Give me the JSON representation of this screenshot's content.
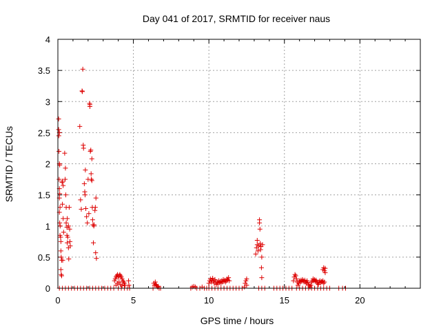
{
  "chart_data": {
    "type": "scatter",
    "title": "Day 041 of 2017, SRMTID for receiver naus",
    "xlabel": "GPS time / hours",
    "ylabel": "SRMTID / TECUs",
    "xlim": [
      0,
      24
    ],
    "ylim": [
      0,
      4
    ],
    "x_ticks": [
      0,
      5,
      10,
      15,
      20
    ],
    "y_ticks": [
      0,
      0.5,
      1,
      1.5,
      2,
      2.5,
      3,
      3.5,
      4
    ],
    "x_tick_labels": [
      "0",
      "5",
      "10",
      "15",
      "20"
    ],
    "y_tick_labels": [
      "0",
      "0.5",
      "1",
      "1.5",
      "2",
      "2.5",
      "3",
      "3.5",
      "4"
    ],
    "grid": true,
    "marker": "plus",
    "color": "#dd0000",
    "points": [
      [
        0.05,
        2.72
      ],
      [
        0.05,
        2.55
      ],
      [
        0.06,
        2.45
      ],
      [
        0.1,
        2.5
      ],
      [
        0.07,
        2.2
      ],
      [
        0.1,
        2.0
      ],
      [
        0.12,
        1.98
      ],
      [
        0.08,
        1.75
      ],
      [
        0.1,
        1.6
      ],
      [
        0.12,
        1.52
      ],
      [
        0.1,
        1.45
      ],
      [
        0.14,
        1.3
      ],
      [
        0.1,
        1.22
      ],
      [
        0.12,
        1.05
      ],
      [
        0.15,
        1.0
      ],
      [
        0.14,
        0.85
      ],
      [
        0.18,
        0.82
      ],
      [
        0.2,
        0.75
      ],
      [
        0.2,
        0.6
      ],
      [
        0.22,
        0.5
      ],
      [
        0.25,
        0.45
      ],
      [
        0.2,
        0.3
      ],
      [
        0.22,
        0.22
      ],
      [
        0.25,
        0.2
      ],
      [
        0.28,
        1.7
      ],
      [
        0.3,
        1.72
      ],
      [
        0.35,
        1.65
      ],
      [
        0.3,
        1.35
      ],
      [
        0.35,
        1.12
      ],
      [
        0.38,
        0.9
      ],
      [
        0.32,
        0.45
      ],
      [
        0.45,
        2.17
      ],
      [
        0.48,
        1.75
      ],
      [
        0.5,
        1.93
      ],
      [
        0.52,
        1.5
      ],
      [
        0.55,
        1.3
      ],
      [
        0.55,
        1.05
      ],
      [
        0.6,
        0.98
      ],
      [
        0.6,
        0.85
      ],
      [
        0.62,
        1.12
      ],
      [
        0.65,
        0.82
      ],
      [
        0.62,
        0.73
      ],
      [
        0.7,
        0.65
      ],
      [
        0.72,
        0.47
      ],
      [
        0.7,
        1.0
      ],
      [
        0.75,
        1.3
      ],
      [
        0.78,
        0.95
      ],
      [
        0.8,
        0.75
      ],
      [
        0.82,
        0.68
      ],
      [
        1.45,
        2.6
      ],
      [
        1.5,
        1.42
      ],
      [
        1.55,
        1.27
      ],
      [
        1.6,
        3.17
      ],
      [
        1.62,
        3.16
      ],
      [
        1.65,
        3.52
      ],
      [
        1.68,
        2.3
      ],
      [
        1.7,
        2.25
      ],
      [
        1.75,
        1.68
      ],
      [
        1.78,
        1.55
      ],
      [
        1.8,
        1.5
      ],
      [
        1.82,
        1.9
      ],
      [
        1.85,
        1.28
      ],
      [
        1.9,
        1.15
      ],
      [
        1.95,
        1.05
      ],
      [
        2.0,
        1.75
      ],
      [
        2.05,
        1.2
      ],
      [
        2.1,
        2.97
      ],
      [
        2.12,
        2.95
      ],
      [
        2.12,
        2.92
      ],
      [
        2.15,
        2.2
      ],
      [
        2.18,
        2.22
      ],
      [
        2.2,
        1.84
      ],
      [
        2.22,
        1.75
      ],
      [
        2.25,
        2.08
      ],
      [
        2.25,
        1.73
      ],
      [
        2.28,
        1.3
      ],
      [
        2.3,
        1.1
      ],
      [
        2.32,
        1.02
      ],
      [
        2.35,
        0.73
      ],
      [
        2.38,
        1.0
      ],
      [
        2.4,
        1.02
      ],
      [
        2.45,
        1.25
      ],
      [
        2.48,
        1.3
      ],
      [
        2.5,
        0.57
      ],
      [
        2.52,
        1.45
      ],
      [
        2.55,
        0.48
      ],
      [
        0.1,
        0.0
      ],
      [
        0.3,
        0.0
      ],
      [
        0.5,
        0.0
      ],
      [
        0.7,
        0.0
      ],
      [
        0.9,
        0.0
      ],
      [
        1.1,
        0.0
      ],
      [
        1.3,
        0.0
      ],
      [
        1.5,
        0.0
      ],
      [
        1.7,
        0.0
      ],
      [
        1.9,
        0.0
      ],
      [
        2.1,
        0.0
      ],
      [
        2.3,
        0.0
      ],
      [
        2.5,
        0.0
      ],
      [
        2.7,
        0.0
      ],
      [
        2.9,
        0.0
      ],
      [
        3.1,
        0.0
      ],
      [
        3.3,
        0.0
      ],
      [
        3.5,
        0.0
      ],
      [
        3.7,
        0.0
      ],
      [
        3.75,
        0.12
      ],
      [
        3.8,
        0.15
      ],
      [
        3.85,
        0.18
      ],
      [
        3.9,
        0.2
      ],
      [
        3.95,
        0.22
      ],
      [
        4.0,
        0.18
      ],
      [
        4.05,
        0.2
      ],
      [
        4.1,
        0.22
      ],
      [
        4.15,
        0.2
      ],
      [
        4.2,
        0.18
      ],
      [
        4.25,
        0.15
      ],
      [
        4.3,
        0.12
      ],
      [
        4.35,
        0.1
      ],
      [
        4.4,
        0.08
      ],
      [
        3.85,
        0.05
      ],
      [
        3.95,
        0.08
      ],
      [
        4.05,
        0.1
      ],
      [
        4.15,
        0.06
      ],
      [
        4.25,
        0.04
      ],
      [
        4.45,
        0.05
      ],
      [
        4.0,
        0.0
      ],
      [
        4.2,
        0.0
      ],
      [
        4.4,
        0.0
      ],
      [
        4.6,
        0.0
      ],
      [
        4.7,
        0.05
      ],
      [
        4.68,
        0.12
      ],
      [
        4.75,
        0.0
      ],
      [
        6.3,
        0.0
      ],
      [
        6.35,
        0.08
      ],
      [
        6.4,
        0.05
      ],
      [
        6.45,
        0.1
      ],
      [
        6.5,
        0.06
      ],
      [
        6.55,
        0.04
      ],
      [
        6.6,
        0.02
      ],
      [
        6.65,
        0.03
      ],
      [
        6.7,
        0.0
      ],
      [
        6.8,
        0.0
      ],
      [
        8.8,
        0.0
      ],
      [
        8.9,
        0.02
      ],
      [
        9.0,
        0.03
      ],
      [
        9.1,
        0.02
      ],
      [
        9.2,
        0.0
      ],
      [
        9.4,
        0.0
      ],
      [
        9.55,
        0.02
      ],
      [
        9.7,
        0.0
      ],
      [
        9.85,
        0.0
      ],
      [
        10.0,
        0.08
      ],
      [
        10.05,
        0.12
      ],
      [
        10.1,
        0.15
      ],
      [
        10.15,
        0.1
      ],
      [
        10.2,
        0.13
      ],
      [
        10.25,
        0.16
      ],
      [
        10.3,
        0.12
      ],
      [
        10.35,
        0.08
      ],
      [
        10.4,
        0.14
      ],
      [
        10.45,
        0.1
      ],
      [
        10.5,
        0.06
      ],
      [
        10.55,
        0.1
      ],
      [
        10.6,
        0.08
      ],
      [
        10.65,
        0.12
      ],
      [
        10.7,
        0.09
      ],
      [
        10.75,
        0.11
      ],
      [
        10.8,
        0.08
      ],
      [
        10.85,
        0.12
      ],
      [
        10.9,
        0.1
      ],
      [
        10.95,
        0.14
      ],
      [
        11.0,
        0.11
      ],
      [
        11.05,
        0.13
      ],
      [
        11.1,
        0.1
      ],
      [
        11.15,
        0.12
      ],
      [
        11.2,
        0.15
      ],
      [
        11.25,
        0.13
      ],
      [
        11.3,
        0.17
      ],
      [
        11.35,
        0.12
      ],
      [
        10.0,
        0.0
      ],
      [
        10.2,
        0.0
      ],
      [
        10.4,
        0.0
      ],
      [
        10.6,
        0.0
      ],
      [
        10.8,
        0.0
      ],
      [
        11.0,
        0.0
      ],
      [
        11.2,
        0.0
      ],
      [
        11.4,
        0.0
      ],
      [
        11.6,
        0.0
      ],
      [
        11.8,
        0.0
      ],
      [
        12.0,
        0.0
      ],
      [
        12.2,
        0.0
      ],
      [
        12.35,
        0.02
      ],
      [
        12.4,
        0.08
      ],
      [
        12.45,
        0.12
      ],
      [
        12.5,
        0.15
      ],
      [
        12.5,
        0.05
      ],
      [
        13.1,
        0.55
      ],
      [
        13.15,
        0.65
      ],
      [
        13.2,
        0.7
      ],
      [
        13.2,
        0.77
      ],
      [
        13.25,
        0.6
      ],
      [
        13.3,
        0.68
      ],
      [
        13.35,
        1.1
      ],
      [
        13.35,
        1.05
      ],
      [
        13.38,
        0.95
      ],
      [
        13.4,
        0.72
      ],
      [
        13.42,
        0.62
      ],
      [
        13.45,
        0.67
      ],
      [
        13.48,
        0.33
      ],
      [
        13.5,
        0.5
      ],
      [
        13.5,
        0.17
      ],
      [
        13.55,
        0.7
      ],
      [
        13.3,
        0.0
      ],
      [
        13.5,
        0.0
      ],
      [
        13.7,
        0.0
      ],
      [
        14.3,
        0.0
      ],
      [
        14.5,
        0.0
      ],
      [
        14.7,
        0.0
      ],
      [
        14.9,
        0.0
      ],
      [
        15.1,
        0.0
      ],
      [
        15.3,
        0.0
      ],
      [
        15.5,
        0.0
      ],
      [
        15.6,
        0.12
      ],
      [
        15.65,
        0.18
      ],
      [
        15.7,
        0.22
      ],
      [
        15.75,
        0.2
      ],
      [
        15.8,
        0.15
      ],
      [
        15.85,
        0.1
      ],
      [
        15.9,
        0.05
      ],
      [
        15.95,
        0.08
      ],
      [
        16.0,
        0.12
      ],
      [
        16.05,
        0.1
      ],
      [
        16.1,
        0.13
      ],
      [
        16.15,
        0.11
      ],
      [
        16.2,
        0.14
      ],
      [
        16.25,
        0.12
      ],
      [
        16.3,
        0.1
      ],
      [
        16.35,
        0.13
      ],
      [
        16.4,
        0.1
      ],
      [
        16.45,
        0.08
      ],
      [
        16.5,
        0.12
      ],
      [
        16.55,
        0.09
      ],
      [
        16.6,
        0.06
      ],
      [
        16.65,
        0.04
      ],
      [
        16.7,
        0.02
      ],
      [
        16.75,
        0.05
      ],
      [
        16.8,
        0.1
      ],
      [
        16.85,
        0.12
      ],
      [
        16.9,
        0.15
      ],
      [
        16.95,
        0.12
      ],
      [
        17.0,
        0.14
      ],
      [
        17.05,
        0.11
      ],
      [
        17.1,
        0.13
      ],
      [
        17.15,
        0.1
      ],
      [
        17.2,
        0.08
      ],
      [
        17.25,
        0.06
      ],
      [
        17.3,
        0.1
      ],
      [
        17.35,
        0.12
      ],
      [
        17.4,
        0.09
      ],
      [
        17.45,
        0.11
      ],
      [
        17.5,
        0.1
      ],
      [
        17.55,
        0.12
      ],
      [
        17.6,
        0.08
      ],
      [
        17.65,
        0.1
      ],
      [
        17.55,
        0.3
      ],
      [
        17.6,
        0.33
      ],
      [
        17.65,
        0.28
      ],
      [
        17.7,
        0.32
      ],
      [
        17.7,
        0.25
      ],
      [
        15.8,
        0.0
      ],
      [
        16.0,
        0.0
      ],
      [
        16.2,
        0.0
      ],
      [
        16.4,
        0.0
      ],
      [
        16.6,
        0.0
      ],
      [
        16.8,
        0.0
      ],
      [
        17.0,
        0.0
      ],
      [
        17.2,
        0.0
      ],
      [
        17.4,
        0.0
      ],
      [
        17.6,
        0.0
      ],
      [
        17.8,
        0.0
      ],
      [
        18.0,
        0.0
      ],
      [
        18.6,
        0.0
      ],
      [
        18.85,
        0.0
      ],
      [
        19.05,
        0.0
      ]
    ]
  }
}
